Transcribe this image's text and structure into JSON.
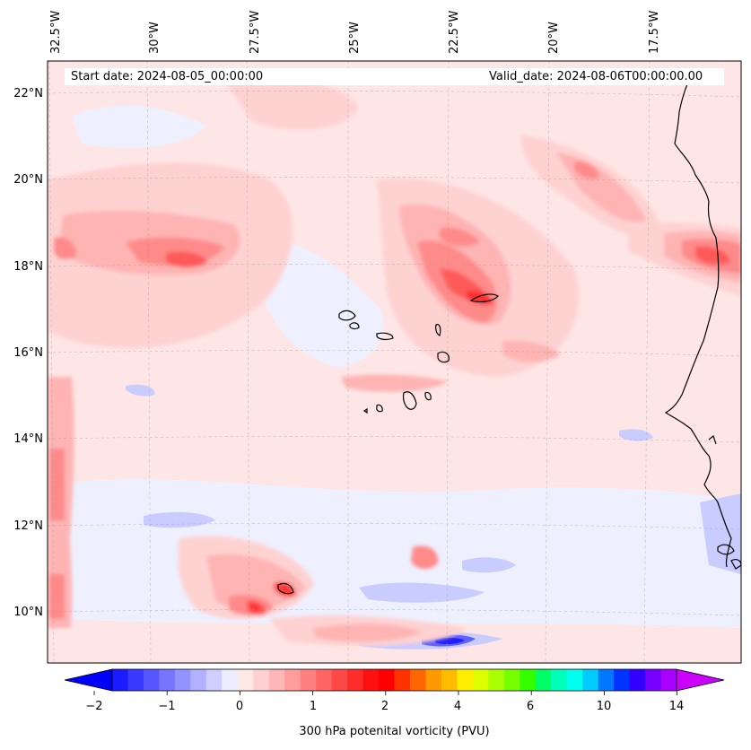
{
  "header": {
    "start_date": "Start date: 2024-08-05_00:00:00",
    "valid_date": "Valid_date: 2024-08-06T00:00:00.00"
  },
  "longitude_labels": [
    "32.5°W",
    "30°W",
    "27.5°W",
    "25°W",
    "22.5°W",
    "20°W",
    "17.5°W"
  ],
  "latitude_labels": [
    "22°N",
    "20°N",
    "18°N",
    "16°N",
    "14°N",
    "12°N",
    "10°N"
  ],
  "colorbar": {
    "label": "300 hPa potenital vorticity (PVU)",
    "ticks": [
      "−2",
      "−1",
      "0",
      "1",
      "2",
      "4",
      "6",
      "10",
      "14"
    ],
    "colors": [
      "#1b1bff",
      "#3939ff",
      "#5757ff",
      "#7575ff",
      "#9393ff",
      "#b1b1ff",
      "#cfcfff",
      "#ededff",
      "#ffe8e8",
      "#ffd0d0",
      "#ffb8b8",
      "#ff9c9c",
      "#ff8080",
      "#ff6464",
      "#ff4848",
      "#ff2c2c",
      "#ff1010",
      "#ff0000",
      "#ff3300",
      "#ff6600",
      "#ff9900",
      "#ffbb00",
      "#ffee00",
      "#ddff00",
      "#aaff00",
      "#77ff00",
      "#33ff00",
      "#00ff66",
      "#00ffbb",
      "#00ffee",
      "#00ccff",
      "#0077ff",
      "#0033ff",
      "#3300ff",
      "#7700ff",
      "#aa00ff"
    ],
    "under_color": "#0000ff",
    "over_color": "#cc00ff"
  },
  "field_colors": {
    "background": "#ffe6e6",
    "light_pink": "#ffd2d2",
    "pink": "#ffb4b4",
    "red_light": "#ff8a8a",
    "red": "#ff5a5a",
    "red_strong": "#ff3030",
    "light_blue": "#eef0ff",
    "blue": "#c8ccff",
    "blue_strong": "#6060ff",
    "deep_blue": "#1e1eff"
  }
}
